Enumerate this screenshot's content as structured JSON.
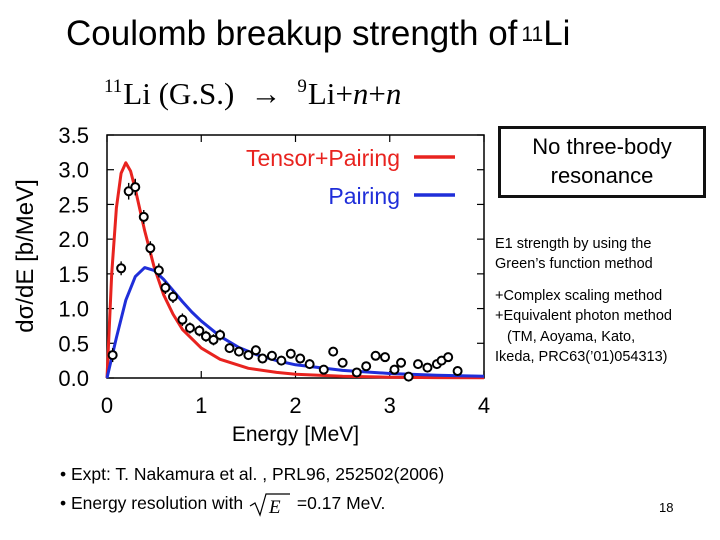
{
  "slide": {
    "title_main": "Coulomb breakup strength of",
    "title_mass": "11",
    "title_elem": "Li",
    "reaction": {
      "lhs_mass": "11",
      "lhs": "Li (G.S.)",
      "arrow": "→",
      "rhs_mass": "9",
      "rhs_elem": "Li",
      "plus1": "+",
      "n1": "n",
      "plus2": "+",
      "n2": "n"
    },
    "callout": {
      "line1": "No three-body",
      "line2": "resonance"
    },
    "note1": {
      "line1": "E1 strength by using the",
      "line2": "Green’s function method"
    },
    "note2": {
      "line1": "+Complex scaling method",
      "line2": "+Equivalent photon method",
      "line3": "(TM,  Aoyama, Kato,",
      "line4": "Ikeda, PRC63(’01)054313)"
    },
    "bullet1": "• Expt:  T. Nakamura et al. ,  PRL96, 252502(2006)",
    "bullet2_pre": "• Energy resolution with",
    "bullet2_sqrt": "E",
    "bullet2_post": "=0.17 MeV.",
    "page_number": "18"
  },
  "chart_data": {
    "type": "line",
    "xlabel": "Energy [MeV]",
    "ylabel": "dσ/dE [b/MeV]",
    "xlim": [
      0,
      4
    ],
    "ylim": [
      0,
      3.5
    ],
    "xticks": [
      0,
      1,
      2,
      3,
      4
    ],
    "yticks": [
      0.0,
      0.5,
      1.0,
      1.5,
      2.0,
      2.5,
      3.0,
      3.5
    ],
    "ytick_labels": [
      "0.0",
      "0.5",
      "1.0",
      "1.5",
      "2.0",
      "2.5",
      "3.0",
      "3.5"
    ],
    "grid": false,
    "legend_position": "top-right",
    "colors": {
      "tensor_pairing": "#e8231f",
      "pairing": "#1f2ed9",
      "points": "#000000"
    },
    "series": [
      {
        "name": "Tensor+Pairing",
        "x": [
          0,
          0.05,
          0.1,
          0.15,
          0.2,
          0.25,
          0.3,
          0.35,
          0.4,
          0.5,
          0.6,
          0.7,
          0.8,
          1.0,
          1.2,
          1.5,
          1.8,
          2.0,
          2.5,
          3.0,
          3.5,
          4.0
        ],
        "values": [
          0,
          1.5,
          2.45,
          2.95,
          3.1,
          2.98,
          2.72,
          2.42,
          2.12,
          1.6,
          1.2,
          0.92,
          0.7,
          0.43,
          0.27,
          0.14,
          0.08,
          0.055,
          0.025,
          0.012,
          0.006,
          0.003
        ]
      },
      {
        "name": "Pairing",
        "x": [
          0,
          0.1,
          0.2,
          0.3,
          0.4,
          0.5,
          0.6,
          0.7,
          0.8,
          0.9,
          1.0,
          1.2,
          1.4,
          1.6,
          1.8,
          2.0,
          2.5,
          3.0,
          3.5,
          4.0
        ],
        "values": [
          0,
          0.58,
          1.12,
          1.46,
          1.59,
          1.55,
          1.42,
          1.26,
          1.1,
          0.95,
          0.82,
          0.6,
          0.44,
          0.33,
          0.25,
          0.19,
          0.11,
          0.065,
          0.04,
          0.025
        ]
      }
    ],
    "experiment": {
      "name": "Expt",
      "x": [
        0.06,
        0.15,
        0.23,
        0.3,
        0.39,
        0.46,
        0.55,
        0.62,
        0.7,
        0.8,
        0.88,
        0.98,
        1.05,
        1.13,
        1.2,
        1.3,
        1.4,
        1.5,
        1.58,
        1.65,
        1.75,
        1.85,
        1.95,
        2.05,
        2.15,
        2.3,
        2.4,
        2.5,
        2.65,
        2.75,
        2.85,
        2.95,
        3.05,
        3.12,
        3.2,
        3.3,
        3.4,
        3.5,
        3.55,
        3.62,
        3.72
      ],
      "values": [
        0.33,
        1.58,
        2.69,
        2.75,
        2.32,
        1.87,
        1.55,
        1.3,
        1.17,
        0.84,
        0.72,
        0.68,
        0.6,
        0.55,
        0.62,
        0.43,
        0.38,
        0.33,
        0.4,
        0.28,
        0.32,
        0.25,
        0.35,
        0.28,
        0.2,
        0.12,
        0.38,
        0.22,
        0.08,
        0.17,
        0.32,
        0.3,
        0.12,
        0.22,
        0.02,
        0.2,
        0.15,
        0.2,
        0.25,
        0.3,
        0.1
      ],
      "errors": [
        0.1,
        0.1,
        0.12,
        0.12,
        0.1,
        0.1,
        0.1,
        0.09,
        0.09,
        0.09,
        0.08,
        0.08,
        0.08,
        0.08,
        0.08,
        0.07,
        0.07,
        0.07,
        0.07,
        0.07,
        0.07,
        0.07,
        0.07,
        0.07,
        0.07,
        0.06,
        0.06,
        0.06,
        0.06,
        0.06,
        0.06,
        0.06,
        0.06,
        0.06,
        0.06,
        0.06,
        0.06,
        0.06,
        0.06,
        0.06,
        0.06
      ]
    }
  }
}
